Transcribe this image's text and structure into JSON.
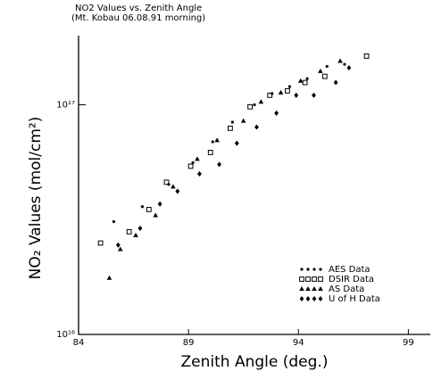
{
  "chart_data": {
    "type": "scatter",
    "title": "NO2 Values vs. Zenith Angle",
    "subtitle": "(Mt. Kobau 06.08.91 morning)",
    "x_label": "Zenith Angle (deg.)",
    "y_label": "NO₂ Values (mol/cm²)",
    "xlim": [
      84,
      100
    ],
    "xticks": [
      84,
      89,
      94,
      99
    ],
    "ylim": [
      1e+16,
      2e+17
    ],
    "yticks": [
      {
        "value": 1e+16,
        "label": "10¹⁶"
      },
      {
        "value": 1e+17,
        "label": "10¹⁷"
      }
    ],
    "log_y": true,
    "grid": false,
    "legend": "lower right",
    "series": [
      {
        "name": "AES Data",
        "marker": "dot",
        "color": "#000000",
        "x": [
          85.6,
          86.9,
          88.1,
          89.2,
          90.1,
          91.0,
          92.0,
          92.8,
          93.6,
          94.4,
          95.3,
          96.1
        ],
        "values": [
          3.1e+16,
          3.6e+16,
          4.5e+16,
          5.6e+16,
          6.9e+16,
          8.4e+16,
          1e+17,
          1.12e+17,
          1.2e+17,
          1.3e+17,
          1.47e+17,
          1.5e+17
        ]
      },
      {
        "name": "DSIR Data",
        "marker": "square",
        "color": "#000000",
        "x": [
          85.0,
          86.3,
          87.2,
          88.0,
          89.1,
          90.0,
          90.9,
          91.8,
          92.7,
          93.5,
          94.3,
          95.2,
          97.1
        ],
        "values": [
          2.5e+16,
          2.8e+16,
          3.5e+16,
          4.6e+16,
          5.4e+16,
          6.2e+16,
          7.9e+16,
          9.8e+16,
          1.1e+17,
          1.15e+17,
          1.25e+17,
          1.33e+17,
          1.63e+17
        ]
      },
      {
        "name": "AS Data",
        "marker": "triangle",
        "color": "#000000",
        "x": [
          85.4,
          85.9,
          86.6,
          87.5,
          88.3,
          89.4,
          90.3,
          91.5,
          92.3,
          93.2,
          94.1,
          95.0,
          95.9
        ],
        "values": [
          1.76e+16,
          2.35e+16,
          2.7e+16,
          3.3e+16,
          4.4e+16,
          5.8e+16,
          7e+16,
          8.5e+16,
          1.03e+17,
          1.13e+17,
          1.27e+17,
          1.4e+17,
          1.55e+17
        ]
      },
      {
        "name": "U of H Data",
        "marker": "diamond",
        "color": "#000000",
        "x": [
          85.8,
          86.8,
          87.7,
          88.5,
          89.5,
          90.4,
          91.2,
          92.1,
          93.0,
          93.9,
          94.7,
          95.7,
          96.3
        ],
        "values": [
          2.45e+16,
          2.9e+16,
          3.7e+16,
          4.2e+16,
          5e+16,
          5.5e+16,
          6.8e+16,
          8e+16,
          9.2e+16,
          1.1e+17,
          1.1e+17,
          1.25e+17,
          1.45e+17
        ]
      }
    ]
  }
}
